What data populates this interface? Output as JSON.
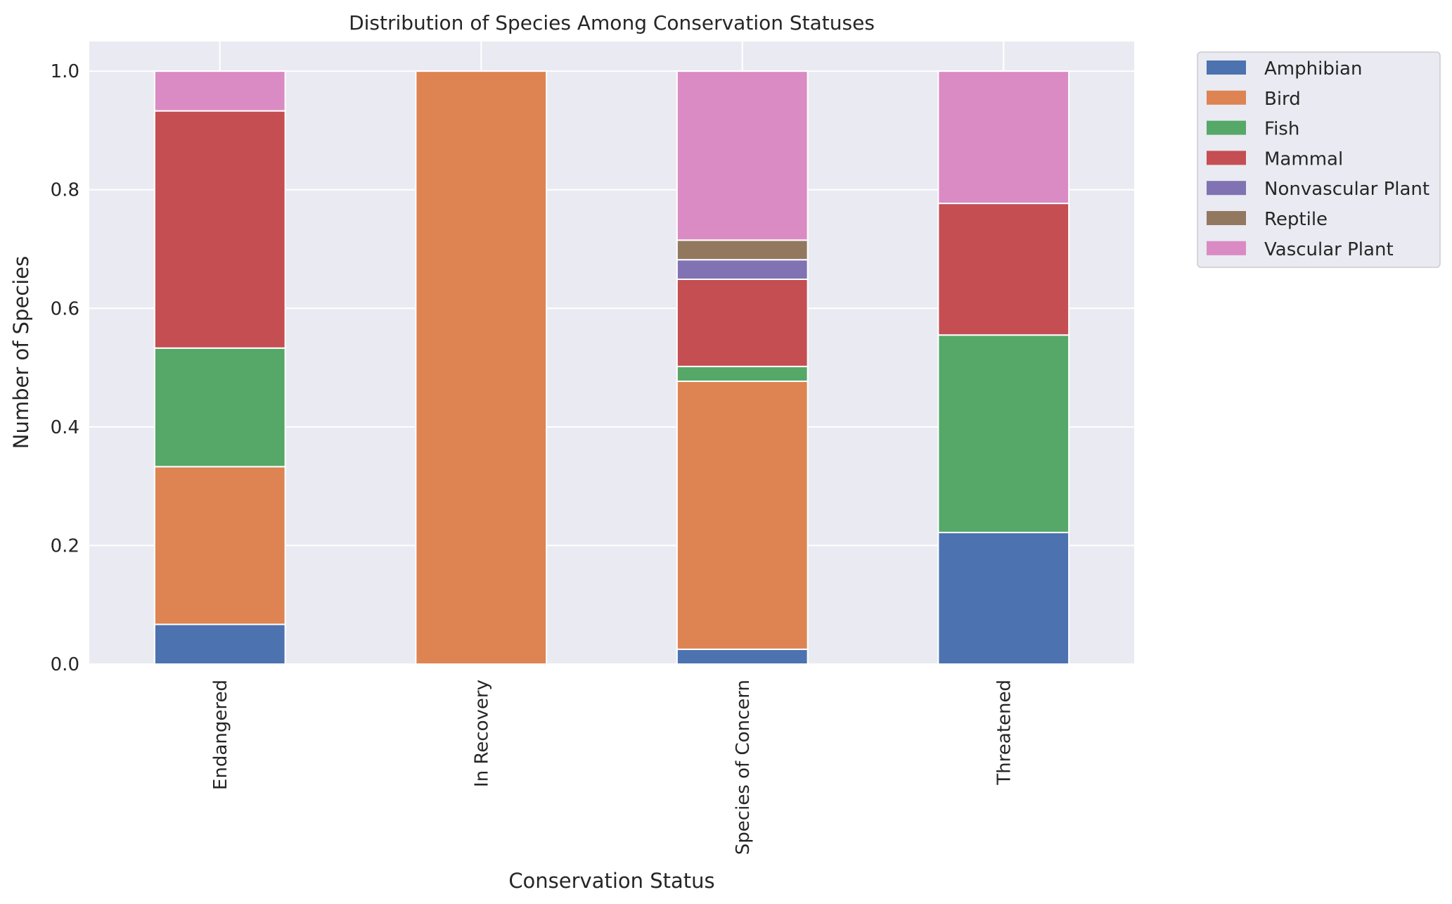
{
  "chart_data": {
    "type": "bar",
    "stacked": true,
    "title": "Distribution of Species Among Conservation Statuses",
    "xlabel": "Conservation Status",
    "ylabel": "Number of Species",
    "categories": [
      "Endangered",
      "In Recovery",
      "Species of Concern",
      "Threatened"
    ],
    "y_ticks": [
      "0.0",
      "0.2",
      "0.4",
      "0.6",
      "0.8",
      "1.0"
    ],
    "ylim": [
      0,
      1.05
    ],
    "grid": true,
    "legend_position": "outside-right",
    "background_color": "#eaeaf2",
    "series": [
      {
        "name": "Amphibian",
        "color": "#4c72b0",
        "values": [
          0.067,
          0.0,
          0.025,
          0.222
        ]
      },
      {
        "name": "Bird",
        "color": "#dd8452",
        "values": [
          0.266,
          1.0,
          0.452,
          0.0
        ]
      },
      {
        "name": "Fish",
        "color": "#55a868",
        "values": [
          0.2,
          0.0,
          0.025,
          0.333
        ]
      },
      {
        "name": "Mammal",
        "color": "#c44e52",
        "values": [
          0.4,
          0.0,
          0.147,
          0.222
        ]
      },
      {
        "name": "Nonvascular Plant",
        "color": "#8172b3",
        "values": [
          0.0,
          0.0,
          0.033,
          0.0
        ]
      },
      {
        "name": "Reptile",
        "color": "#937860",
        "values": [
          0.0,
          0.0,
          0.033,
          0.0
        ]
      },
      {
        "name": "Vascular Plant",
        "color": "#da8bc3",
        "values": [
          0.067,
          0.0,
          0.285,
          0.223
        ]
      }
    ]
  }
}
